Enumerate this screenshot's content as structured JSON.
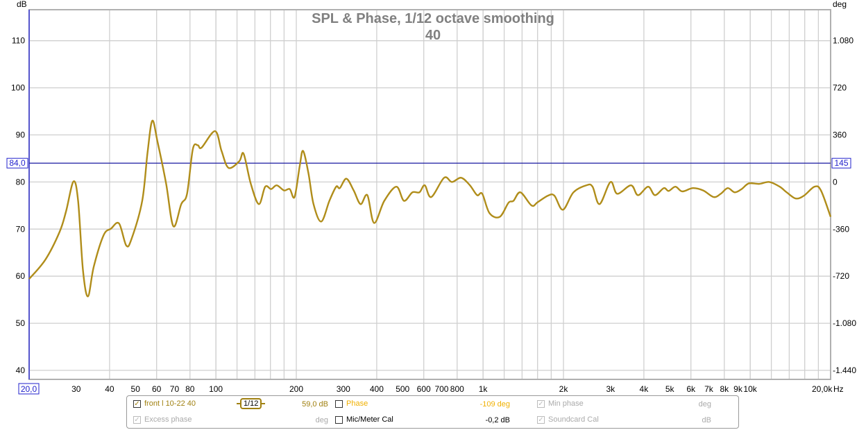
{
  "chart_data": {
    "type": "line",
    "title": "SPL & Phase, 1/12 octave smoothing",
    "subtitle": "40",
    "xlabel": "Hz",
    "ylabel": "dB",
    "y2label": "deg",
    "xscale": "log",
    "xlim": [
      20,
      20000
    ],
    "ylim": [
      37.6,
      115.9
    ],
    "grid": true,
    "x_tick_labels": [
      "30",
      "40",
      "50",
      "60",
      "70",
      "80",
      "100",
      "200",
      "300",
      "400",
      "500",
      "600",
      "700",
      "800",
      "1k",
      "2k",
      "3k",
      "4k",
      "5k",
      "6k",
      "7k",
      "8k",
      "9k",
      "10k"
    ],
    "x_tick_values": [
      30,
      40,
      50,
      60,
      70,
      80,
      100,
      200,
      300,
      400,
      500,
      600,
      700,
      800,
      1000,
      2000,
      3000,
      4000,
      5000,
      6000,
      7000,
      8000,
      9000,
      10000
    ],
    "x_min_label": "20,0",
    "x_max_label": "20,0k",
    "y_ticks": [
      40,
      50,
      60,
      70,
      80,
      90,
      100,
      110
    ],
    "y_tick_labels": [
      "40",
      "50",
      "60",
      "70",
      "80",
      "90",
      "100",
      "110"
    ],
    "y2_ticks": [
      {
        "dB": 40,
        "label": "-1.440"
      },
      {
        "dB": 50,
        "label": "-1.080"
      },
      {
        "dB": 60,
        "label": "-720"
      },
      {
        "dB": 70,
        "label": "-360"
      },
      {
        "dB": 80,
        "label": "0"
      },
      {
        "dB": 90,
        "label": "360"
      },
      {
        "dB": 100,
        "label": "720"
      },
      {
        "dB": 110,
        "label": "1.080"
      }
    ],
    "cursor": {
      "dB": 84.0,
      "label_left": "84,0",
      "label_right": "145"
    },
    "series": [
      {
        "name": "front l 10-22 40",
        "color": "#B08D1A",
        "x": [
          20,
          23,
          26,
          27.5,
          29.3,
          30.5,
          31.8,
          33.2,
          34.9,
          38,
          40.5,
          43.4,
          46.2,
          48.4,
          53,
          55.5,
          57.8,
          60.5,
          65.1,
          69.3,
          74.2,
          78,
          82,
          85.6,
          88.4,
          99.3,
          105,
          111.5,
          122.3,
          127,
          135,
          144.8,
          153,
          161,
          169,
          180,
          189,
          197,
          206,
          212,
          222,
          232,
          248,
          266,
          282,
          291,
          308,
          328,
          348,
          369,
          391,
          427,
          474,
          506,
          544,
          578,
          605,
          640,
          715,
          765,
          828,
          893,
          950,
          993,
          1057,
          1155,
          1246,
          1300,
          1380,
          1520,
          1600,
          1750,
          1850,
          1990,
          2180,
          2440,
          2570,
          2730,
          3000,
          3180,
          3580,
          3800,
          4150,
          4400,
          4750,
          4950,
          5250,
          5570,
          6100,
          6670,
          7300,
          7760,
          8240,
          8750,
          9290,
          9880,
          10800,
          11800,
          12900,
          13700,
          14800,
          15900,
          17400,
          18400,
          20000
        ],
        "y": [
          59.4,
          63.5,
          69.4,
          73.8,
          80.1,
          76,
          61.3,
          55.7,
          62,
          68.7,
          70.1,
          71.2,
          66.5,
          68,
          76,
          86.3,
          93,
          88.5,
          79.7,
          70.6,
          75.3,
          77.5,
          87,
          87.8,
          87.3,
          90.8,
          86.6,
          83,
          84.4,
          86,
          79.7,
          75.3,
          79,
          78.5,
          79.3,
          78.2,
          78.5,
          76.8,
          83.4,
          86.6,
          81.9,
          75.3,
          71.6,
          76,
          79,
          78.7,
          80.7,
          78.2,
          75.3,
          77.2,
          71.3,
          76,
          79,
          76,
          77.8,
          77.8,
          79.3,
          76.8,
          80.9,
          80,
          80.9,
          79.3,
          77.2,
          77.5,
          73.4,
          72.6,
          75.6,
          76,
          77.8,
          75,
          75.7,
          77.1,
          77.1,
          74.1,
          77.8,
          79.3,
          79,
          75.3,
          80,
          77.5,
          79.3,
          77.2,
          79,
          77.2,
          78.7,
          78.1,
          79,
          78,
          78.7,
          78.2,
          76.8,
          77.5,
          78.7,
          77.8,
          78.5,
          79.7,
          79.6,
          80,
          79,
          77.8,
          76.5,
          77.1,
          79,
          78.2,
          72.6
        ]
      }
    ]
  },
  "legend": {
    "series_label": "front l 10-22 40",
    "smoothing": "1/12",
    "spl_value": "59,0 dB",
    "phase_label": "Phase",
    "phase_value": "-109 deg",
    "min_phase_label": "Min phase",
    "min_phase_unit": "deg",
    "excess_phase_label": "Excess phase",
    "excess_phase_unit": "deg",
    "mic_cal_label": "Mic/Meter Cal",
    "mic_cal_value": "-0,2 dB",
    "soundcard_cal_label": "Soundcard Cal",
    "soundcard_cal_unit": "dB",
    "check": "✓"
  }
}
